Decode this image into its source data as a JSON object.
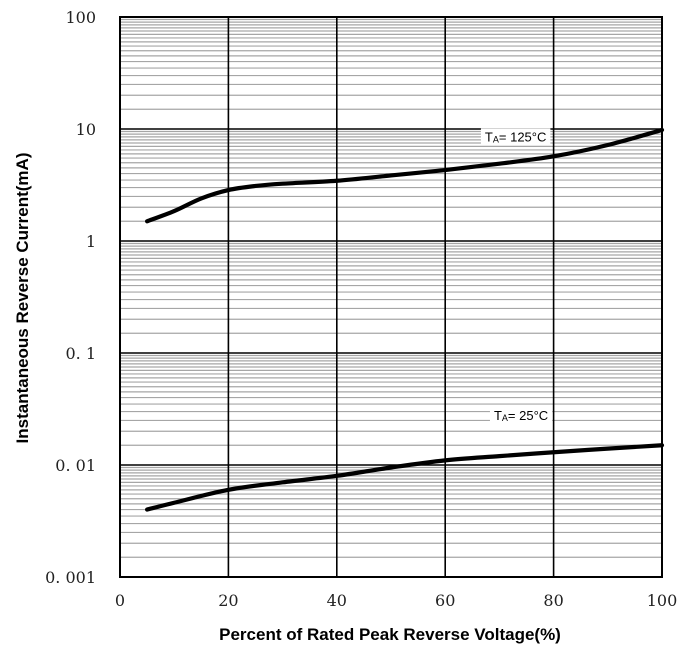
{
  "chart_data": {
    "type": "line",
    "title": "",
    "xlabel": "Percent  of Rated Peak Reverse  Voltage(%)",
    "ylabel": "Instantaneous  Reverse  Current(mA)",
    "xlim": [
      0,
      100
    ],
    "ylim": [
      0.001,
      100
    ],
    "y_scale": "log",
    "grid": true,
    "x_ticks": [
      "0",
      "20",
      "40",
      "60",
      "80",
      "100"
    ],
    "y_ticks": [
      "0. 001",
      "0. 01",
      "0. 1",
      "1",
      "10",
      "100"
    ],
    "series": [
      {
        "annotation": {
          "main": "T",
          "sub": "A",
          "rest": "= 125°C"
        },
        "x": [
          5,
          10,
          15,
          20,
          25,
          30,
          40,
          50,
          60,
          70,
          80,
          90,
          100
        ],
        "y": [
          1.5,
          1.85,
          2.4,
          2.85,
          3.1,
          3.25,
          3.45,
          3.85,
          4.3,
          4.9,
          5.7,
          7.2,
          9.8
        ]
      },
      {
        "annotation": {
          "main": "T",
          "sub": "A",
          "rest": "= 25°C"
        },
        "x": [
          5,
          10,
          20,
          30,
          40,
          50,
          60,
          70,
          80,
          90,
          100
        ],
        "y": [
          0.004,
          0.0046,
          0.006,
          0.007,
          0.008,
          0.0095,
          0.011,
          0.012,
          0.013,
          0.014,
          0.015
        ]
      }
    ]
  }
}
